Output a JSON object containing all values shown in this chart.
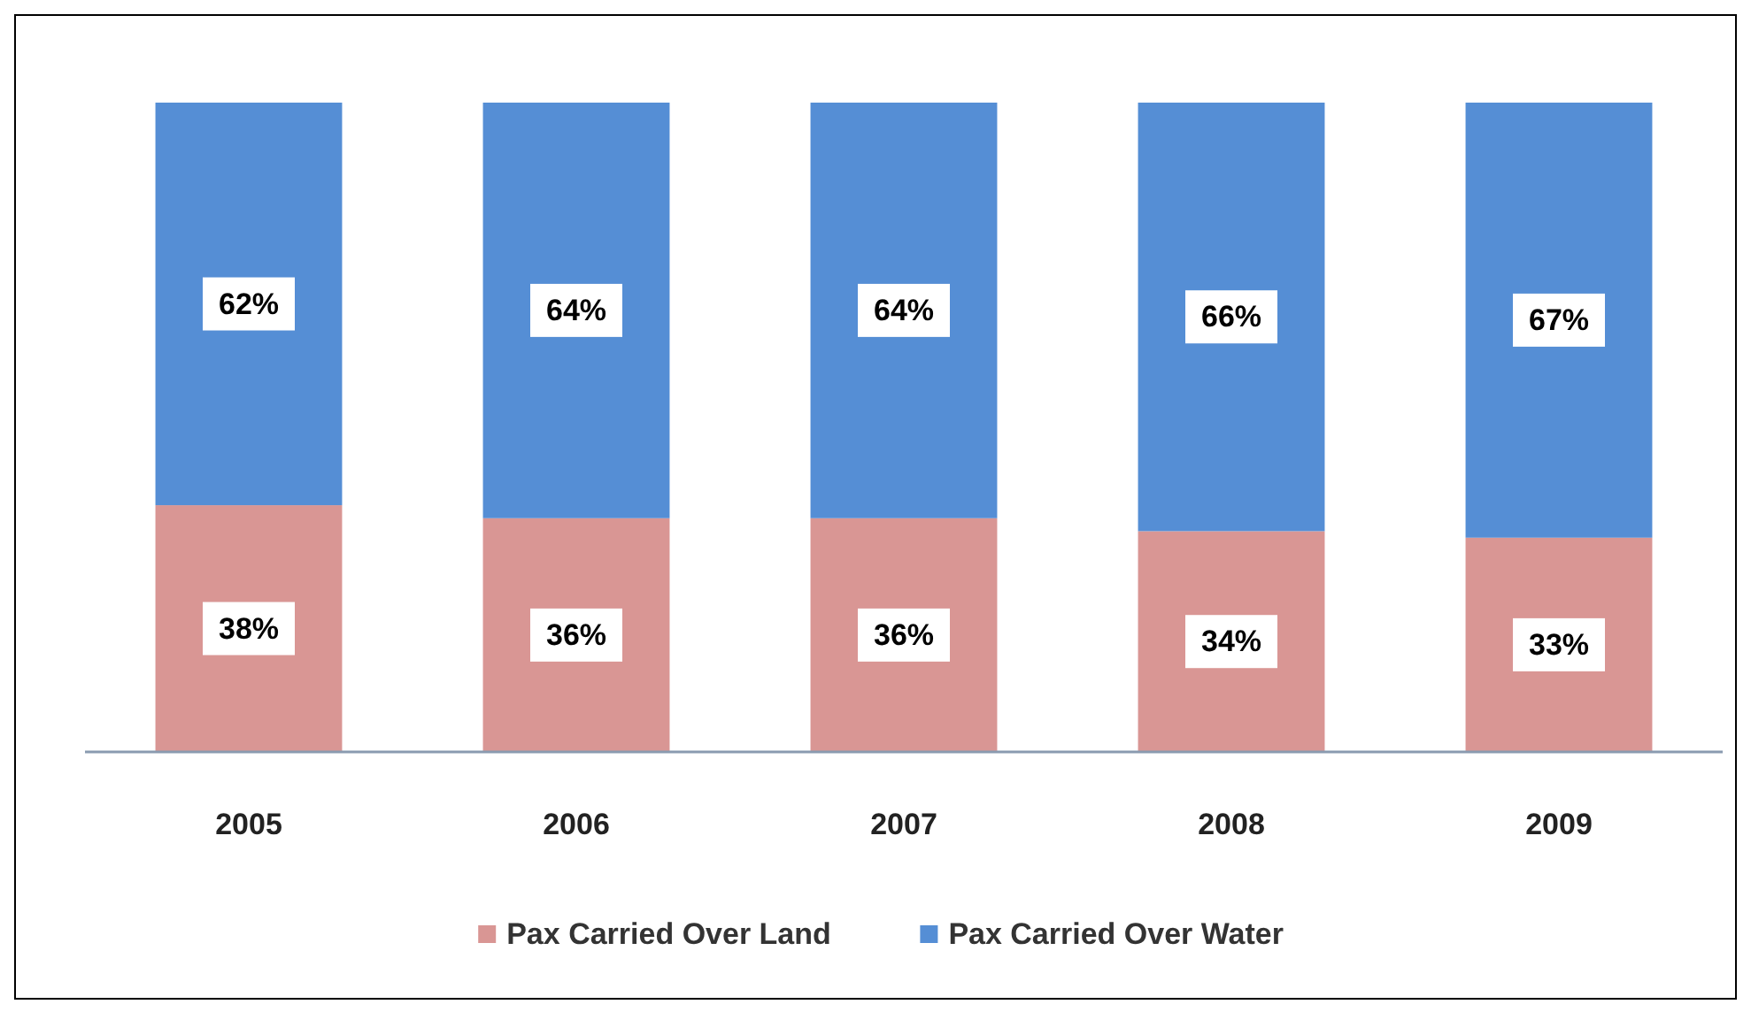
{
  "chart_data": {
    "type": "bar",
    "stacked": true,
    "categories": [
      "2005",
      "2006",
      "2007",
      "2008",
      "2009"
    ],
    "series": [
      {
        "name": "Pax Carried Over Land",
        "color": "#d99694",
        "values": [
          38,
          36,
          36,
          34,
          33
        ],
        "value_labels": [
          "38%",
          "36%",
          "36%",
          "34%",
          "33%"
        ]
      },
      {
        "name": "Pax Carried Over Water",
        "color": "#558ed5",
        "values": [
          62,
          64,
          64,
          66,
          67
        ],
        "value_labels": [
          "62%",
          "64%",
          "64%",
          "66%",
          "67%"
        ]
      }
    ],
    "legend": "bottom",
    "grid": false
  }
}
